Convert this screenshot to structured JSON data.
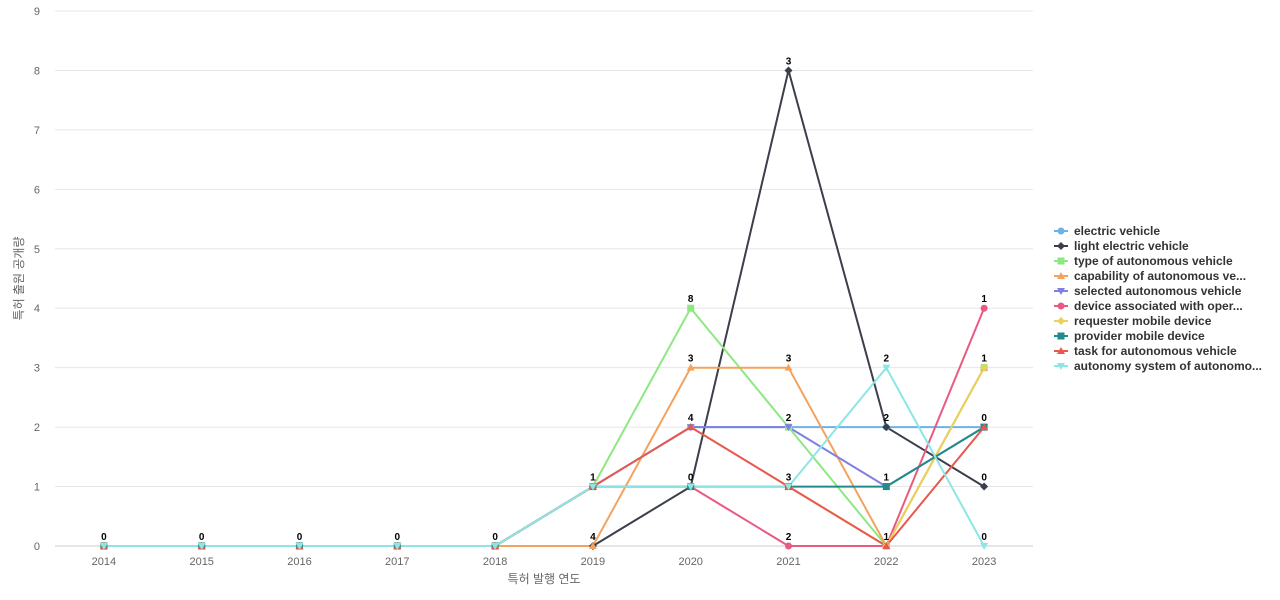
{
  "chart_data": {
    "type": "line",
    "title": "",
    "xlabel": "특허 발행 연도",
    "ylabel": "특허 출원 공개량",
    "ylim": [
      0,
      9
    ],
    "yticks": [
      0,
      1,
      2,
      3,
      4,
      5,
      6,
      7,
      8,
      9
    ],
    "grid": true,
    "legend_position": "right",
    "categories": [
      "2014",
      "2015",
      "2016",
      "2017",
      "2018",
      "2019",
      "2020",
      "2021",
      "2022",
      "2023"
    ],
    "series": [
      {
        "name": "electric vehicle",
        "color": "#6cb2e4",
        "marker": "circle",
        "values": [
          0,
          0,
          0,
          0,
          0,
          1,
          2,
          2,
          2,
          2
        ]
      },
      {
        "name": "light electric vehicle",
        "color": "#3a3f4b",
        "marker": "diamond",
        "values": [
          0,
          0,
          0,
          0,
          0,
          0,
          1,
          8,
          2,
          1
        ]
      },
      {
        "name": "type of autonomous vehicle",
        "color": "#8ee882",
        "marker": "square",
        "values": [
          0,
          0,
          0,
          0,
          0,
          1,
          4,
          2,
          0,
          3
        ]
      },
      {
        "name": "capability of autonomous ve...",
        "color": "#f3a35f",
        "marker": "triangle",
        "values": [
          0,
          0,
          0,
          0,
          0,
          0,
          3,
          3,
          0,
          3
        ]
      },
      {
        "name": "selected autonomous vehicle",
        "color": "#8080e0",
        "marker": "triangle-down",
        "values": [
          0,
          0,
          0,
          0,
          0,
          1,
          2,
          2,
          1,
          2
        ]
      },
      {
        "name": "device associated with oper...",
        "color": "#ea5a80",
        "marker": "circle",
        "values": [
          0,
          0,
          0,
          0,
          0,
          1,
          1,
          0,
          0,
          4
        ]
      },
      {
        "name": "requester mobile device",
        "color": "#ebd05e",
        "marker": "diamond",
        "values": [
          0,
          0,
          0,
          0,
          0,
          1,
          1,
          1,
          0,
          3
        ]
      },
      {
        "name": "provider mobile device",
        "color": "#218a8a",
        "marker": "square",
        "values": [
          0,
          0,
          0,
          0,
          0,
          1,
          1,
          1,
          1,
          2
        ]
      },
      {
        "name": "task for autonomous vehicle",
        "color": "#e8584c",
        "marker": "triangle",
        "values": [
          0,
          0,
          0,
          0,
          0,
          1,
          2,
          1,
          0,
          2
        ]
      },
      {
        "name": "autonomy system of autonomo...",
        "color": "#8de6e6",
        "marker": "triangle-down",
        "values": [
          0,
          0,
          0,
          0,
          0,
          1,
          1,
          1,
          3,
          0
        ]
      }
    ],
    "data_labels": [
      "0",
      "0",
      "0",
      "0",
      "0",
      "1",
      "4",
      "8",
      "3",
      "4",
      "0",
      "3",
      "3",
      "2",
      "3",
      "2",
      "2",
      "2",
      "1",
      "1",
      "1",
      "1",
      "0",
      "0",
      "0"
    ]
  }
}
